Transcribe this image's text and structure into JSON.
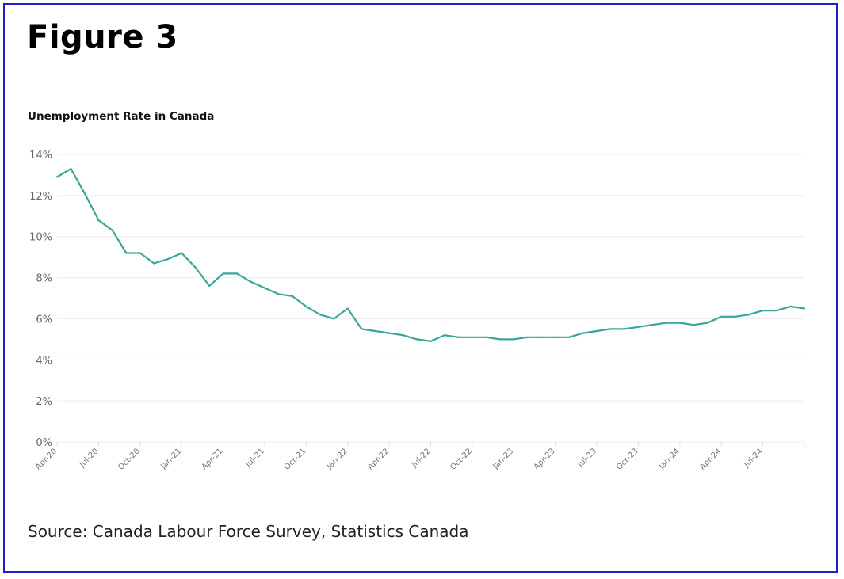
{
  "title": "Figure 3",
  "source": "Source: Canada Labour Force Survey, Statistics Canada",
  "colors": {
    "line": "#3aa699",
    "grid": "#ececec",
    "border": "#2020c8"
  },
  "chart_data": {
    "type": "line",
    "title": "Unemployment Rate in Canada",
    "xlabel": "",
    "ylabel": "",
    "ylim": [
      0,
      14
    ],
    "yticks": [
      "0%",
      "2%",
      "4%",
      "6%",
      "8%",
      "10%",
      "12%",
      "14%"
    ],
    "ytick_values": [
      0,
      2,
      4,
      6,
      8,
      10,
      12,
      14
    ],
    "grid": true,
    "legend": "none",
    "x": [
      "Apr-20",
      "May-20",
      "Jun-20",
      "Jul-20",
      "Aug-20",
      "Sep-20",
      "Oct-20",
      "Nov-20",
      "Dec-20",
      "Jan-21",
      "Feb-21",
      "Mar-21",
      "Apr-21",
      "May-21",
      "Jun-21",
      "Jul-21",
      "Aug-21",
      "Sep-21",
      "Oct-21",
      "Nov-21",
      "Dec-21",
      "Jan-22",
      "Feb-22",
      "Mar-22",
      "Apr-22",
      "May-22",
      "Jun-22",
      "Jul-22",
      "Aug-22",
      "Sep-22",
      "Oct-22",
      "Nov-22",
      "Dec-22",
      "Jan-23",
      "Feb-23",
      "Mar-23",
      "Apr-23",
      "May-23",
      "Jun-23",
      "Jul-23",
      "Aug-23",
      "Sep-23",
      "Oct-23",
      "Nov-23",
      "Dec-23",
      "Jan-24",
      "Feb-24",
      "Mar-24",
      "Apr-24",
      "May-24",
      "Jun-24",
      "Jul-24",
      "Aug-24",
      "Sep-24",
      "Oct-24"
    ],
    "xtick_labels": [
      "Apr-20",
      "Jul-20",
      "Oct-20",
      "Jan-21",
      "Apr-21",
      "Jul-21",
      "Oct-21",
      "Jan-22",
      "Apr-22",
      "Jul-22",
      "Oct-22",
      "Jan-23",
      "Apr-23",
      "Jul-23",
      "Oct-23",
      "Jan-24",
      "Apr-24",
      "Jul-24"
    ],
    "series": [
      {
        "name": "Unemployment rate (%)",
        "values": [
          12.9,
          13.3,
          12.1,
          10.8,
          10.3,
          9.2,
          9.2,
          8.7,
          8.9,
          9.2,
          8.5,
          7.6,
          8.2,
          8.2,
          7.8,
          7.5,
          7.2,
          7.1,
          6.6,
          6.2,
          6.0,
          6.5,
          5.5,
          5.4,
          5.3,
          5.2,
          5.0,
          4.9,
          5.2,
          5.1,
          5.1,
          5.1,
          5.0,
          5.0,
          5.1,
          5.1,
          5.1,
          5.1,
          5.3,
          5.4,
          5.5,
          5.5,
          5.6,
          5.7,
          5.8,
          5.8,
          5.7,
          5.8,
          6.1,
          6.1,
          6.2,
          6.4,
          6.4,
          6.6,
          6.5
        ]
      }
    ]
  }
}
